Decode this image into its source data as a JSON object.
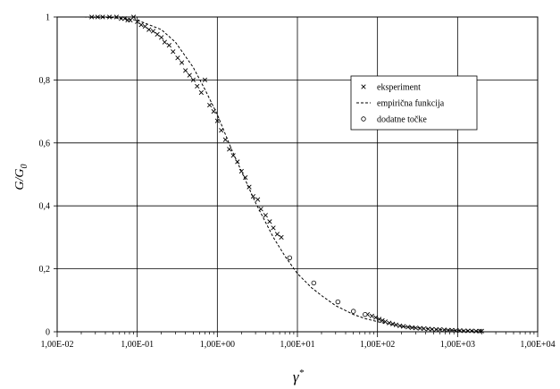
{
  "chart_data": {
    "type": "scatter",
    "x_scale": "log",
    "xlim": [
      0.01,
      10000
    ],
    "ylim": [
      0,
      1
    ],
    "grid": true,
    "legend_position": "right",
    "xlabel": "γ",
    "xlabel_sup": "*",
    "ylabel": "G/G",
    "ylabel_sub": "0",
    "x_tick_labels": [
      "1,00E-02",
      "1,00E-01",
      "1,00E+00",
      "1,00E+01",
      "1,00E+02",
      "1,00E+03",
      "1,00E+04"
    ],
    "x_tick_values": [
      0.01,
      0.1,
      1,
      10,
      100,
      1000,
      10000
    ],
    "y_tick_labels": [
      "0",
      "0,2",
      "0,4",
      "0,6",
      "0,8",
      "1"
    ],
    "y_tick_values": [
      0,
      0.2,
      0.4,
      0.6,
      0.8,
      1
    ],
    "series": [
      {
        "name": "eksperiment",
        "marker": "x",
        "x": [
          0.027,
          0.032,
          0.037,
          0.045,
          0.055,
          0.063,
          0.07,
          0.076,
          0.082,
          0.09,
          0.1,
          0.112,
          0.125,
          0.14,
          0.158,
          0.178,
          0.2,
          0.22,
          0.25,
          0.28,
          0.32,
          0.36,
          0.4,
          0.45,
          0.5,
          0.56,
          0.63,
          0.7,
          0.8,
          0.9,
          1.0,
          1.12,
          1.26,
          1.41,
          1.58,
          1.78,
          2.0,
          2.24,
          2.5,
          2.8,
          3.2,
          3.5,
          4.0,
          4.5,
          5.0,
          5.6,
          6.3,
          75,
          85,
          95,
          105,
          115,
          125,
          140,
          155,
          170,
          190,
          210,
          240,
          270,
          300,
          340,
          380,
          430,
          480,
          540,
          600,
          680,
          760,
          850,
          950,
          1070,
          1200,
          1350,
          1500,
          1700,
          1900,
          2000
        ],
        "y": [
          1.0,
          1.0,
          1.0,
          1.0,
          1.0,
          0.995,
          0.995,
          0.99,
          0.99,
          1.0,
          0.985,
          0.975,
          0.97,
          0.96,
          0.955,
          0.945,
          0.935,
          0.92,
          0.91,
          0.89,
          0.87,
          0.855,
          0.83,
          0.815,
          0.8,
          0.78,
          0.76,
          0.8,
          0.72,
          0.7,
          0.67,
          0.64,
          0.61,
          0.58,
          0.56,
          0.54,
          0.51,
          0.49,
          0.46,
          0.43,
          0.42,
          0.39,
          0.37,
          0.35,
          0.33,
          0.31,
          0.3,
          0.055,
          0.05,
          0.045,
          0.04,
          0.036,
          0.032,
          0.028,
          0.025,
          0.022,
          0.019,
          0.017,
          0.015,
          0.013,
          0.012,
          0.011,
          0.01,
          0.009,
          0.008,
          0.007,
          0.007,
          0.006,
          0.005,
          0.005,
          0.004,
          0.004,
          0.003,
          0.003,
          0.003,
          0.002,
          0.002,
          0.002
        ]
      },
      {
        "name": "empirična funkcija",
        "marker": "dashed-line",
        "x": [
          0.01,
          0.02,
          0.05,
          0.1,
          0.2,
          0.3,
          0.5,
          0.7,
          1.0,
          1.5,
          2.0,
          3.0,
          5.0,
          7.0,
          10,
          15,
          20,
          30,
          50,
          70,
          100,
          200,
          500,
          1000,
          2000
        ],
        "y": [
          1.0,
          1.0,
          0.998,
          0.99,
          0.96,
          0.92,
          0.84,
          0.77,
          0.69,
          0.58,
          0.51,
          0.41,
          0.3,
          0.24,
          0.185,
          0.14,
          0.115,
          0.083,
          0.055,
          0.042,
          0.032,
          0.017,
          0.008,
          0.004,
          0.002
        ]
      },
      {
        "name": "dodatne točke",
        "marker": "circle",
        "x": [
          8,
          16,
          32,
          50,
          70
        ],
        "y": [
          0.235,
          0.155,
          0.095,
          0.065,
          0.055
        ]
      }
    ]
  }
}
